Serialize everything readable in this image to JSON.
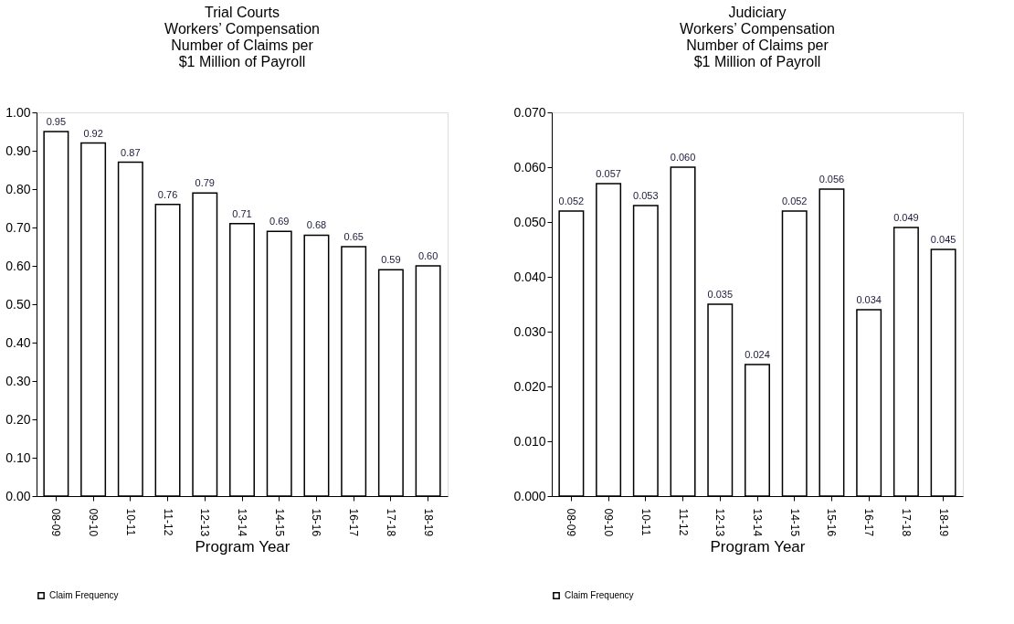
{
  "chart_data": [
    {
      "type": "bar",
      "title": "Trial Courts\nWorkers’ Compensation\nNumber of Claims per\n$1 Million of Payroll",
      "xlabel": "Program Year",
      "categories": [
        "08-09",
        "09-10",
        "10-11",
        "11-12",
        "12-13",
        "13-14",
        "14-15",
        "15-16",
        "16-17",
        "17-18",
        "18-19"
      ],
      "series": [
        {
          "name": "Claim Frequency",
          "color": "#ffffff",
          "values": [
            0.95,
            0.92,
            0.87,
            0.76,
            0.79,
            0.71,
            0.69,
            0.68,
            0.65,
            0.59,
            0.6
          ],
          "value_labels": [
            "0.95",
            "0.92",
            "0.87",
            "0.76",
            "0.79",
            "0.71",
            "0.69",
            "0.68",
            "0.65",
            "0.59",
            "0.60"
          ]
        }
      ],
      "ylim": [
        0,
        1.0
      ],
      "yticks": [
        {
          "value": 0,
          "label": "0.00"
        },
        {
          "value": 0.1,
          "label": "0.10"
        },
        {
          "value": 0.2,
          "label": "0.20"
        },
        {
          "value": 0.3,
          "label": "0.30"
        },
        {
          "value": 0.4,
          "label": "0.40"
        },
        {
          "value": 0.5,
          "label": "0.50"
        },
        {
          "value": 0.6,
          "label": "0.60"
        },
        {
          "value": 0.7,
          "label": "0.70"
        },
        {
          "value": 0.8,
          "label": "0.80"
        },
        {
          "value": 0.9,
          "label": "0.90"
        },
        {
          "value": 1.0,
          "label": "1.00"
        }
      ],
      "grid": false,
      "legend": "bottom"
    },
    {
      "type": "bar",
      "title": "Judiciary\nWorkers’ Compensation\nNumber of Claims per\n$1 Million of Payroll",
      "xlabel": "Program Year",
      "categories": [
        "08-09",
        "09-10",
        "10-11",
        "11-12",
        "12-13",
        "13-14",
        "14-15",
        "15-16",
        "16-17",
        "17-18",
        "18-19"
      ],
      "series": [
        {
          "name": "Claim Frequency",
          "color": "#ffffff",
          "values": [
            0.052,
            0.057,
            0.053,
            0.06,
            0.035,
            0.024,
            0.052,
            0.056,
            0.034,
            0.049,
            0.045
          ],
          "value_labels": [
            "0.052",
            "0.057",
            "0.053",
            "0.060",
            "0.035",
            "0.024",
            "0.052",
            "0.056",
            "0.034",
            "0.049",
            "0.045"
          ]
        }
      ],
      "ylim": [
        0,
        0.07
      ],
      "yticks": [
        {
          "value": 0,
          "label": "0.000"
        },
        {
          "value": 0.01,
          "label": "0.010"
        },
        {
          "value": 0.02,
          "label": "0.020"
        },
        {
          "value": 0.03,
          "label": "0.030"
        },
        {
          "value": 0.04,
          "label": "0.040"
        },
        {
          "value": 0.05,
          "label": "0.050"
        },
        {
          "value": 0.06,
          "label": "0.060"
        },
        {
          "value": 0.07,
          "label": "0.070"
        }
      ],
      "grid": false,
      "legend": "bottom"
    }
  ]
}
